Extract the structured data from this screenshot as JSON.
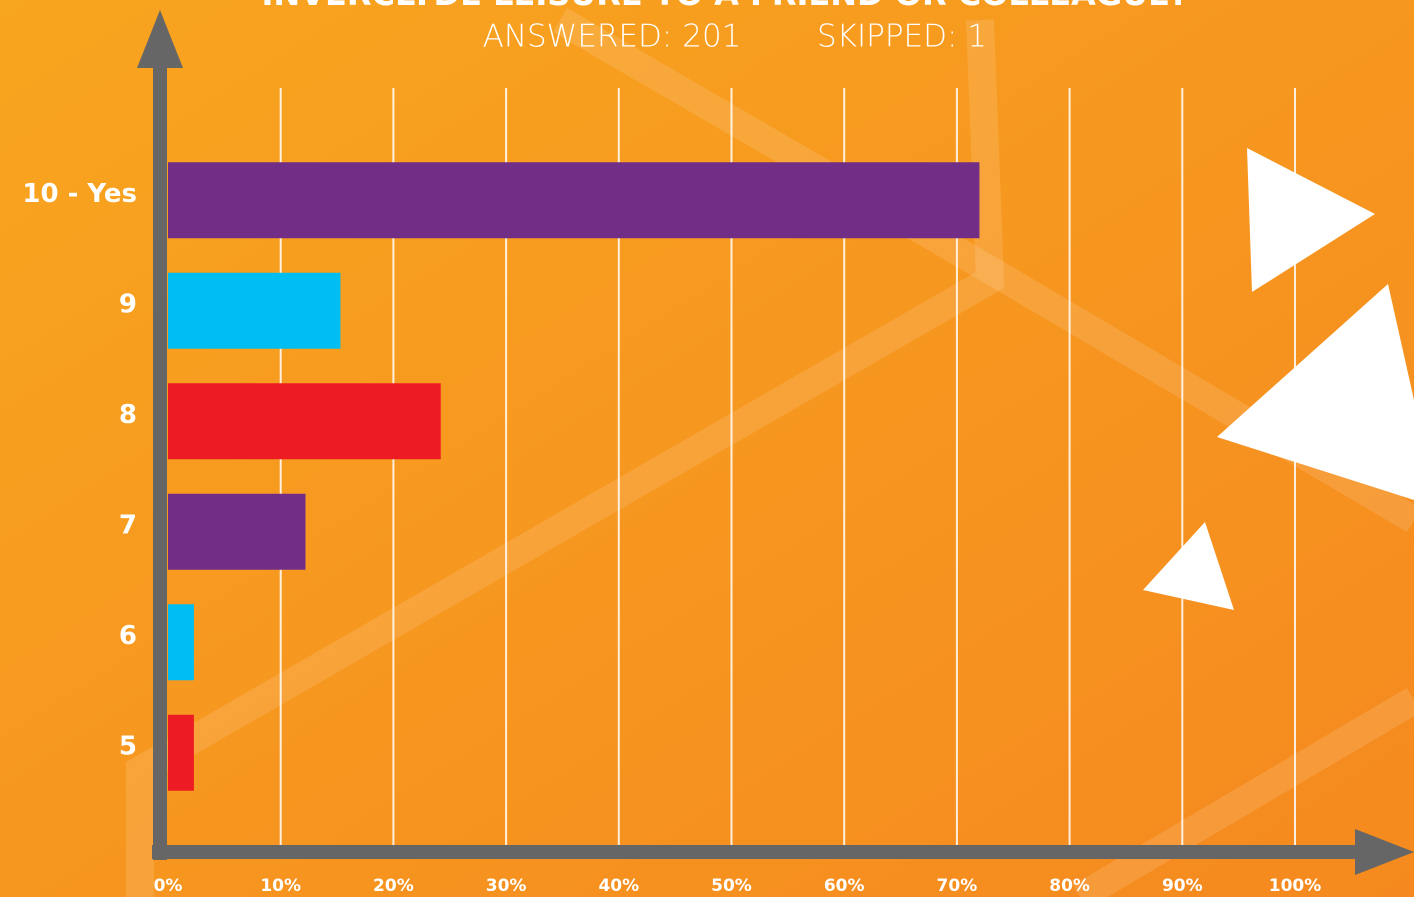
{
  "chart_data": {
    "type": "bar",
    "orientation": "horizontal",
    "title": "INVERCLYDE LEISURE TO A FRIEND OR COLLEAGUE?",
    "subtitle": [
      "ANSWERED: 201",
      "SKIPPED: 1"
    ],
    "categories": [
      "10 - Yes",
      "9",
      "8",
      "7",
      "6",
      "5"
    ],
    "values": [
      72,
      15.3,
      24.2,
      12.2,
      2.3,
      2.3
    ],
    "colors": [
      "#722d87",
      "#00bdf2",
      "#ed1c24",
      "#722d87",
      "#00bdf2",
      "#ed1c24"
    ],
    "xlim": [
      0,
      100
    ],
    "xticks": [
      {
        "value": 0,
        "label": "0%"
      },
      {
        "value": 10,
        "label": "10%"
      },
      {
        "value": 20,
        "label": "20%"
      },
      {
        "value": 30,
        "label": "30%"
      },
      {
        "value": 40,
        "label": "40%"
      },
      {
        "value": 50,
        "label": "50%"
      },
      {
        "value": 60,
        "label": "60%"
      },
      {
        "value": 70,
        "label": "70%"
      },
      {
        "value": 80,
        "label": "80%"
      },
      {
        "value": 90,
        "label": "90%"
      },
      {
        "value": 100,
        "label": "100%"
      }
    ],
    "grid": true
  }
}
